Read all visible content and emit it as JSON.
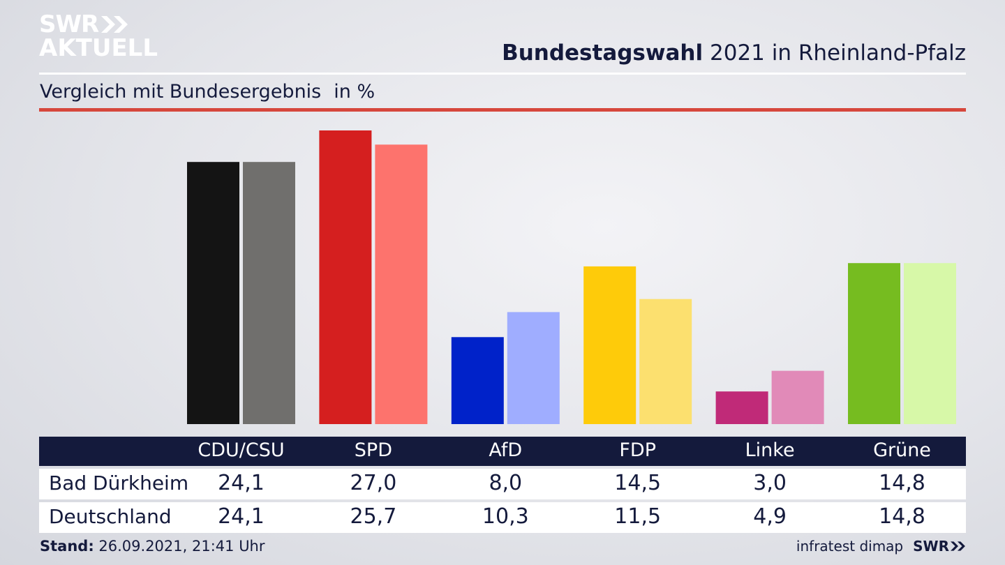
{
  "logo": {
    "line1": "SWR",
    "line2": "AKTUELL",
    "icon": "double-chevron-icon"
  },
  "header": {
    "title_bold": "Bundestagswahl",
    "title_rest": "2021 in Rheinland-Pfalz"
  },
  "subheader": {
    "text": "Vergleich mit Bundesergebnis",
    "unit": "in %"
  },
  "colors": {
    "CDU/CSU": [
      "#141414",
      "#706f6d"
    ],
    "SPD": [
      "#d51f1f",
      "#fd736d"
    ],
    "AfD": [
      "#0022c9",
      "#9fadff"
    ],
    "FDP": [
      "#fecb0a",
      "#fce06f"
    ],
    "Linke": [
      "#c02a78",
      "#e18ab8"
    ],
    "Grüne": [
      "#76bc20",
      "#d7f8a8"
    ]
  },
  "chart_data": {
    "type": "bar",
    "title": "Bundestagswahl 2021 in Rheinland-Pfalz",
    "subtitle": "Vergleich mit Bundesergebnis",
    "unit": "in %",
    "categories": [
      "CDU/CSU",
      "SPD",
      "AfD",
      "FDP",
      "Linke",
      "Grüne"
    ],
    "series": [
      {
        "name": "Bad Dürkheim",
        "values": [
          24.1,
          27.0,
          8.0,
          14.5,
          3.0,
          14.8
        ],
        "labels": [
          "24,1",
          "27,0",
          "8,0",
          "14,5",
          "3,0",
          "14,8"
        ]
      },
      {
        "name": "Deutschland",
        "values": [
          24.1,
          25.7,
          10.3,
          11.5,
          4.9,
          14.8
        ],
        "labels": [
          "24,1",
          "25,7",
          "10,3",
          "11,5",
          "4,9",
          "14,8"
        ]
      }
    ],
    "ylim": [
      0,
      27.0
    ]
  },
  "footer": {
    "stand_label": "Stand:",
    "stand_value": "26.09.2021, 21:41 Uhr"
  },
  "source": {
    "text": "infratest dimap",
    "brand": "SWR",
    "brand_icon": "double-chevron-icon"
  }
}
